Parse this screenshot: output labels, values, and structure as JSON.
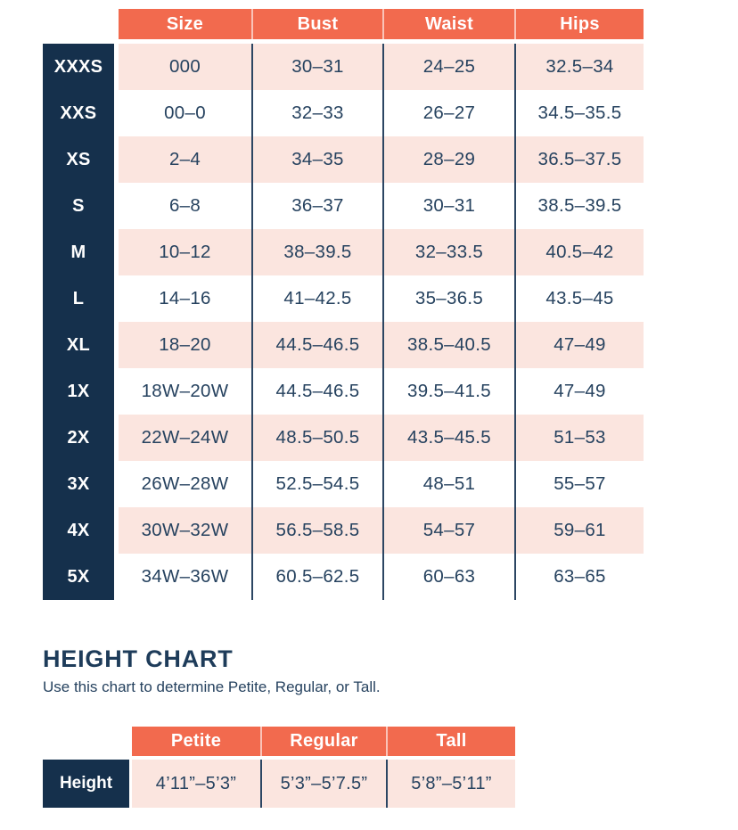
{
  "colors": {
    "header_orange": "#F26A4E",
    "row_pink": "#FBE5DF",
    "label_navy": "#15304C",
    "text_navy": "#26425F",
    "divider_navy": "#2C4663"
  },
  "size_chart": {
    "columns": [
      "Size",
      "Bust",
      "Waist",
      "Hips"
    ],
    "rows": [
      {
        "label": "XXXS",
        "size": "000",
        "bust": "30–31",
        "waist": "24–25",
        "hips": "32.5–34"
      },
      {
        "label": "XXS",
        "size": "00–0",
        "bust": "32–33",
        "waist": "26–27",
        "hips": "34.5–35.5"
      },
      {
        "label": "XS",
        "size": "2–4",
        "bust": "34–35",
        "waist": "28–29",
        "hips": "36.5–37.5"
      },
      {
        "label": "S",
        "size": "6–8",
        "bust": "36–37",
        "waist": "30–31",
        "hips": "38.5–39.5"
      },
      {
        "label": "M",
        "size": "10–12",
        "bust": "38–39.5",
        "waist": "32–33.5",
        "hips": "40.5–42"
      },
      {
        "label": "L",
        "size": "14–16",
        "bust": "41–42.5",
        "waist": "35–36.5",
        "hips": "43.5–45"
      },
      {
        "label": "XL",
        "size": "18–20",
        "bust": "44.5–46.5",
        "waist": "38.5–40.5",
        "hips": "47–49"
      },
      {
        "label": "1X",
        "size": "18W–20W",
        "bust": "44.5–46.5",
        "waist": "39.5–41.5",
        "hips": "47–49"
      },
      {
        "label": "2X",
        "size": "22W–24W",
        "bust": "48.5–50.5",
        "waist": "43.5–45.5",
        "hips": "51–53"
      },
      {
        "label": "3X",
        "size": "26W–28W",
        "bust": "52.5–54.5",
        "waist": "48–51",
        "hips": "55–57"
      },
      {
        "label": "4X",
        "size": "30W–32W",
        "bust": "56.5–58.5",
        "waist": "54–57",
        "hips": "59–61"
      },
      {
        "label": "5X",
        "size": "34W–36W",
        "bust": "60.5–62.5",
        "waist": "60–63",
        "hips": "63–65"
      }
    ]
  },
  "height_chart": {
    "title": "HEIGHT CHART",
    "subtitle": "Use this chart to determine Petite, Regular, or Tall.",
    "columns": [
      "Petite",
      "Regular",
      "Tall"
    ],
    "row_label": "Height",
    "values": [
      "4’11”–5’3”",
      "5’3”–5’7.5”",
      "5’8”–5’11”"
    ]
  },
  "chart_data": [
    {
      "type": "table",
      "title": "Size chart",
      "columns": [
        "Size",
        "Bust",
        "Waist",
        "Hips"
      ],
      "row_labels": [
        "XXXS",
        "XXS",
        "XS",
        "S",
        "M",
        "L",
        "XL",
        "1X",
        "2X",
        "3X",
        "4X",
        "5X"
      ],
      "rows": [
        [
          "000",
          "30–31",
          "24–25",
          "32.5–34"
        ],
        [
          "00–0",
          "32–33",
          "26–27",
          "34.5–35.5"
        ],
        [
          "2–4",
          "34–35",
          "28–29",
          "36.5–37.5"
        ],
        [
          "6–8",
          "36–37",
          "30–31",
          "38.5–39.5"
        ],
        [
          "10–12",
          "38–39.5",
          "32–33.5",
          "40.5–42"
        ],
        [
          "14–16",
          "41–42.5",
          "35–36.5",
          "43.5–45"
        ],
        [
          "18–20",
          "44.5–46.5",
          "38.5–40.5",
          "47–49"
        ],
        [
          "18W–20W",
          "44.5–46.5",
          "39.5–41.5",
          "47–49"
        ],
        [
          "22W–24W",
          "48.5–50.5",
          "43.5–45.5",
          "51–53"
        ],
        [
          "26W–28W",
          "52.5–54.5",
          "48–51",
          "55–57"
        ],
        [
          "30W–32W",
          "56.5–58.5",
          "54–57",
          "59–61"
        ],
        [
          "34W–36W",
          "60.5–62.5",
          "60–63",
          "63–65"
        ]
      ]
    },
    {
      "type": "table",
      "title": "HEIGHT CHART",
      "columns": [
        "Petite",
        "Regular",
        "Tall"
      ],
      "row_labels": [
        "Height"
      ],
      "rows": [
        [
          "4’11”–5’3”",
          "5’3”–5’7.5”",
          "5’8”–5’11”"
        ]
      ]
    }
  ]
}
